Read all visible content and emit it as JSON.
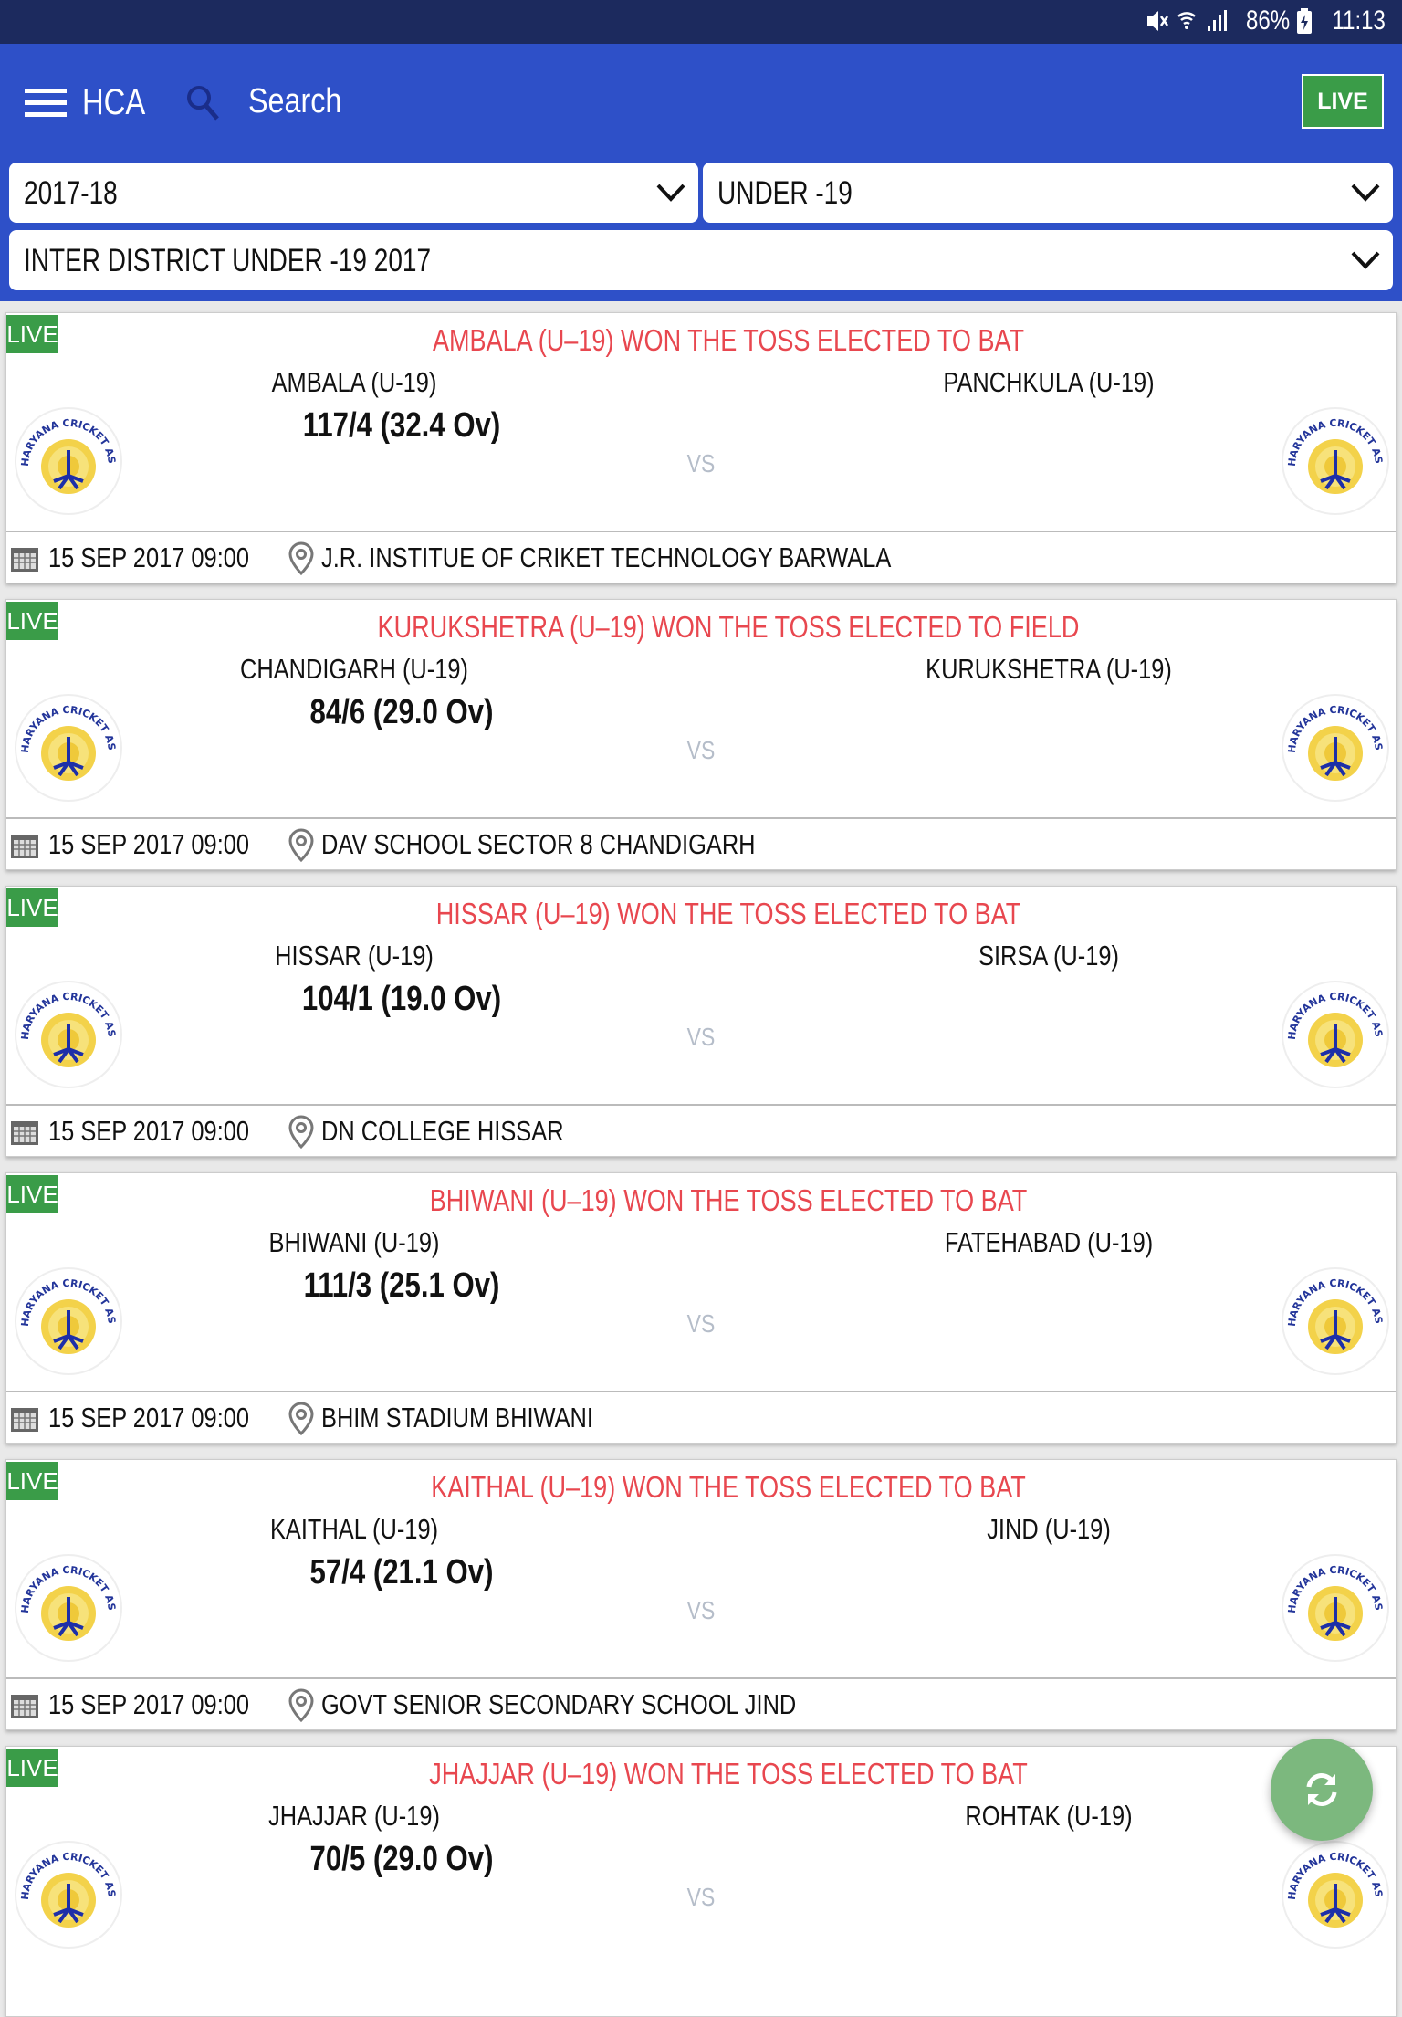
{
  "status_bar": {
    "battery": "86%",
    "time": "11:13",
    "icons": [
      "mute-icon",
      "wifi-icon",
      "signal-icon",
      "battery-charging-icon"
    ]
  },
  "app_bar": {
    "title": "HCA",
    "search_label": "Search",
    "live_button": "LIVE"
  },
  "filters": {
    "season": "2017-18",
    "category": "UNDER -19",
    "tournament": "INTER DISTRICT UNDER -19 2017"
  },
  "colors": {
    "status_bar": "#1c2a5e",
    "app_bar": "#2e50c8",
    "toss_text": "#e8474f",
    "live_green": "#3a9c48",
    "fab": "#7cb87e"
  },
  "logo_text": "HARYANA CRICKET ASSOCIATION",
  "matches": [
    {
      "badge": "LIVE",
      "toss": "AMBALA (U–19) WON THE TOSS ELECTED TO BAT",
      "team1": "AMBALA (U-19)",
      "team2": "PANCHKULA (U-19)",
      "score": "117/4 (32.4 Ov)",
      "vs": "VS",
      "datetime": "15 SEP 2017 09:00",
      "venue": "J.R. INSTITUE OF CRIKET TECHNOLOGY BARWALA"
    },
    {
      "badge": "LIVE",
      "toss": "KURUKSHETRA (U–19) WON THE TOSS ELECTED TO FIELD",
      "team1": "CHANDIGARH (U-19)",
      "team2": "KURUKSHETRA (U-19)",
      "score": "84/6 (29.0 Ov)",
      "vs": "VS",
      "datetime": "15 SEP 2017 09:00",
      "venue": "DAV SCHOOL SECTOR 8 CHANDIGARH"
    },
    {
      "badge": "LIVE",
      "toss": "HISSAR (U–19) WON THE TOSS ELECTED TO BAT",
      "team1": "HISSAR (U-19)",
      "team2": "SIRSA (U-19)",
      "score": "104/1 (19.0 Ov)",
      "vs": "VS",
      "datetime": "15 SEP 2017 09:00",
      "venue": "DN COLLEGE HISSAR"
    },
    {
      "badge": "LIVE",
      "toss": "BHIWANI (U–19) WON THE TOSS ELECTED TO BAT",
      "team1": "BHIWANI (U-19)",
      "team2": "FATEHABAD (U-19)",
      "score": "111/3 (25.1 Ov)",
      "vs": "VS",
      "datetime": "15 SEP 2017 09:00",
      "venue": "BHIM STADIUM BHIWANI"
    },
    {
      "badge": "LIVE",
      "toss": "KAITHAL (U–19) WON THE TOSS ELECTED TO BAT",
      "team1": "KAITHAL (U-19)",
      "team2": "JIND (U-19)",
      "score": "57/4 (21.1 Ov)",
      "vs": "VS",
      "datetime": "15 SEP 2017 09:00",
      "venue": "GOVT SENIOR SECONDARY SCHOOL JIND"
    },
    {
      "badge": "LIVE",
      "toss": "JHAJJAR (U–19) WON THE TOSS ELECTED TO BAT",
      "team1": "JHAJJAR (U-19)",
      "team2": "ROHTAK (U-19)",
      "score": "70/5 (29.0 Ov)",
      "vs": "VS"
    }
  ],
  "fab": {
    "icon": "refresh-icon"
  }
}
